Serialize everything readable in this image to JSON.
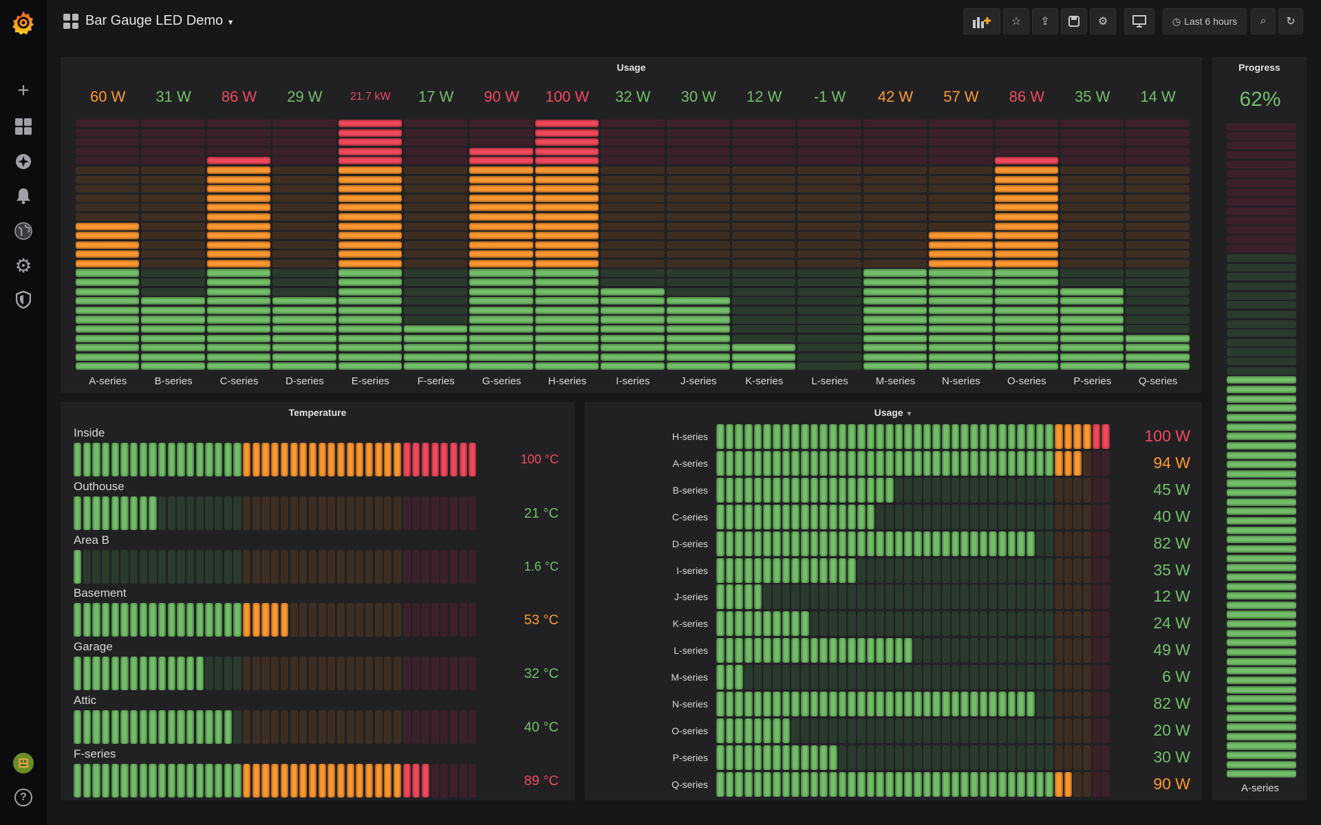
{
  "header": {
    "title": "Bar Gauge LED Demo",
    "time_range": "Last 6 hours"
  },
  "icons": {
    "sidebar": [
      "grafana-logo-icon",
      "plus-icon",
      "dashboards-icon",
      "explore-compass-icon",
      "alerting-bell-icon",
      "globe-icon",
      "gear-icon",
      "shield-icon"
    ],
    "bottom": [
      "user-avatar-icon",
      "help-icon"
    ]
  },
  "colors": {
    "green": "#73bf69",
    "orange": "#ff9830",
    "red": "#f2495c"
  },
  "usage_top": {
    "title": "Usage",
    "min": 0,
    "max": 100,
    "thresholds": [
      40,
      80
    ],
    "items": [
      {
        "label": "A-series",
        "value": 60,
        "text": "60 W"
      },
      {
        "label": "B-series",
        "value": 31,
        "text": "31 W"
      },
      {
        "label": "C-series",
        "value": 86,
        "text": "86 W"
      },
      {
        "label": "D-series",
        "value": 29,
        "text": "29 W"
      },
      {
        "label": "E-series",
        "value": 21700,
        "text": "21.7 kW"
      },
      {
        "label": "F-series",
        "value": 17,
        "text": "17 W"
      },
      {
        "label": "G-series",
        "value": 90,
        "text": "90 W"
      },
      {
        "label": "H-series",
        "value": 100,
        "text": "100 W"
      },
      {
        "label": "I-series",
        "value": 32,
        "text": "32 W"
      },
      {
        "label": "J-series",
        "value": 30,
        "text": "30 W"
      },
      {
        "label": "K-series",
        "value": 12,
        "text": "12 W"
      },
      {
        "label": "L-series",
        "value": -1,
        "text": "-1 W"
      },
      {
        "label": "M-series",
        "value": 42,
        "text": "42 W"
      },
      {
        "label": "N-series",
        "value": 57,
        "text": "57 W"
      },
      {
        "label": "O-series",
        "value": 86,
        "text": "86 W"
      },
      {
        "label": "P-series",
        "value": 35,
        "text": "35 W"
      },
      {
        "label": "Q-series",
        "value": 14,
        "text": "14 W"
      }
    ]
  },
  "progress": {
    "title": "Progress",
    "value": 62,
    "text": "62%",
    "label": "A-series",
    "min": 0,
    "max": 100,
    "thresholds": [
      80,
      80
    ]
  },
  "temperature": {
    "title": "Temperature",
    "min": 0,
    "max": 100,
    "thresholds": [
      42,
      81
    ],
    "items": [
      {
        "label": "Inside",
        "value": 100,
        "text": "100 °C"
      },
      {
        "label": "Outhouse",
        "value": 21,
        "text": "21 °C"
      },
      {
        "label": "Area B",
        "value": 1.6,
        "text": "1.6 °C"
      },
      {
        "label": "Basement",
        "value": 53,
        "text": "53 °C"
      },
      {
        "label": "Garage",
        "value": 32,
        "text": "32 °C"
      },
      {
        "label": "Attic",
        "value": 40,
        "text": "40 °C"
      },
      {
        "label": "F-series",
        "value": 89,
        "text": "89 °C"
      }
    ]
  },
  "usage_bottom": {
    "title": "Usage",
    "min": 0,
    "max": 100,
    "thresholds": [
      86,
      95
    ],
    "items": [
      {
        "label": "H-series",
        "value": 100,
        "text": "100 W"
      },
      {
        "label": "A-series",
        "value": 94,
        "text": "94 W"
      },
      {
        "label": "B-series",
        "value": 45,
        "text": "45 W"
      },
      {
        "label": "C-series",
        "value": 40,
        "text": "40 W"
      },
      {
        "label": "D-series",
        "value": 82,
        "text": "82 W"
      },
      {
        "label": "I-series",
        "value": 35,
        "text": "35 W"
      },
      {
        "label": "J-series",
        "value": 12,
        "text": "12 W"
      },
      {
        "label": "K-series",
        "value": 24,
        "text": "24 W"
      },
      {
        "label": "L-series",
        "value": 49,
        "text": "49 W"
      },
      {
        "label": "M-series",
        "value": 6,
        "text": "6 W"
      },
      {
        "label": "N-series",
        "value": 82,
        "text": "82 W"
      },
      {
        "label": "O-series",
        "value": 20,
        "text": "20 W"
      },
      {
        "label": "P-series",
        "value": 30,
        "text": "30 W"
      },
      {
        "label": "Q-series",
        "value": 90,
        "text": "90 W"
      }
    ]
  }
}
